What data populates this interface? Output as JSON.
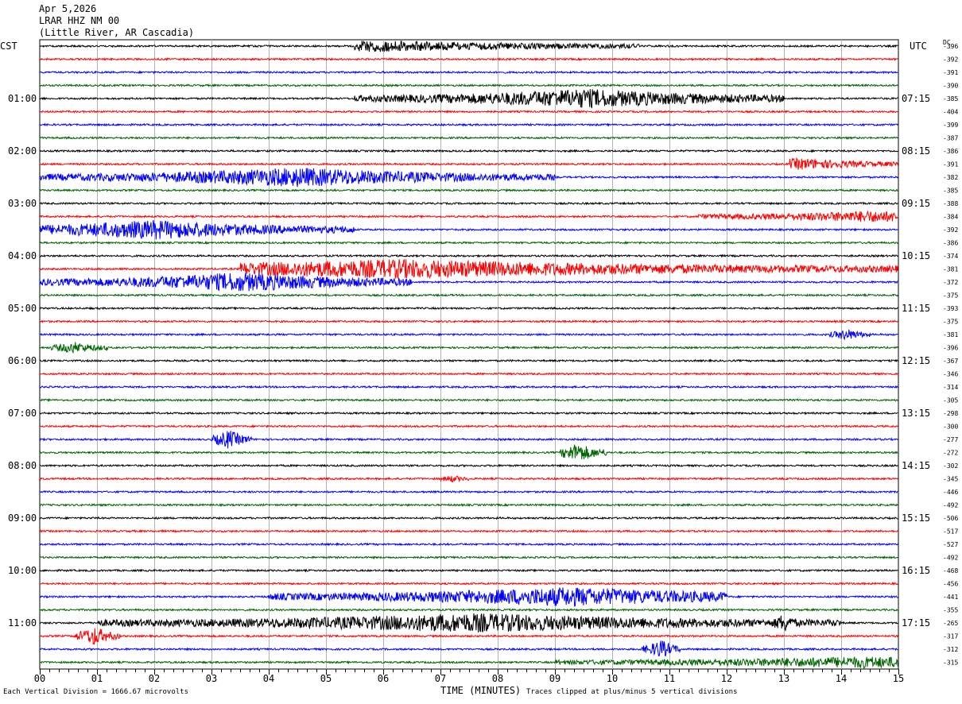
{
  "header": {
    "date": "Apr 5,2026",
    "station": "LRAR HHZ NM 00",
    "location": "(Little River, AR Cascadia)"
  },
  "left_zone": "CST",
  "right_zone": "UTC",
  "dc_label": "DC",
  "footer": {
    "scale_note": "Each Vertical Division = 1666.67 microvolts",
    "xlabel": "TIME (MINUTES)",
    "clip_note": "Traces clipped at plus/minus 5 vertical divisions"
  },
  "colors": {
    "trace_cycle": [
      "#000000",
      "#ff0000",
      "#0000ff",
      "#006400"
    ],
    "grid": "#b4b4b4"
  },
  "chart_data": {
    "type": "line",
    "title": "LRAR HHZ NM 00",
    "xlabel": "TIME (MINUTES)",
    "xlim": [
      0,
      15
    ],
    "x_ticks": [
      "00",
      "01",
      "02",
      "03",
      "04",
      "05",
      "06",
      "07",
      "08",
      "09",
      "10",
      "11",
      "12",
      "13",
      "14",
      "15"
    ],
    "minutes_per_line": 15,
    "left_hour_labels": [
      "01:00",
      "02:00",
      "03:00",
      "04:00",
      "05:00",
      "06:00",
      "07:00",
      "08:00",
      "09:00",
      "10:00",
      "11:00"
    ],
    "right_hour_labels": [
      "07:15",
      "08:15",
      "09:15",
      "10:15",
      "11:15",
      "12:15",
      "13:15",
      "14:15",
      "15:15",
      "16:15",
      "17:15"
    ],
    "dc_offsets": [
      "-396",
      "-392",
      "-391",
      "-390",
      "-385",
      "-404",
      "-399",
      "-387",
      "-386",
      "-391",
      "-382",
      "-385",
      "-388",
      "-384",
      "-392",
      "-386",
      "-374",
      "-381",
      "-372",
      "-375",
      "-393",
      "-375",
      "-381",
      "-396",
      "-367",
      "-346",
      "-314",
      "-305",
      "-298",
      "-300",
      "-277",
      "-272",
      "-302",
      "-345",
      "-446",
      "-492",
      "-506",
      "-517",
      "-527",
      "-492",
      "-468",
      "-456",
      "-441",
      "-355",
      "-265",
      "-317",
      "-312",
      "-315"
    ],
    "trace_count": 48,
    "activity_bursts": [
      {
        "trace": 0,
        "start_min": 5.5,
        "end_min": 10.5,
        "peak_min": 5.8,
        "level": "moderate"
      },
      {
        "trace": 4,
        "start_min": 5.5,
        "end_min": 13,
        "peak_min": 9.5,
        "level": "strong"
      },
      {
        "trace": 9,
        "start_min": 13.1,
        "end_min": 15,
        "peak_min": 13.3,
        "level": "moderate"
      },
      {
        "trace": 10,
        "start_min": 0,
        "end_min": 9,
        "peak_min": 4.5,
        "level": "strong"
      },
      {
        "trace": 13,
        "start_min": 11.5,
        "end_min": 15,
        "peak_min": 14.5,
        "level": "moderate"
      },
      {
        "trace": 14,
        "start_min": 0,
        "end_min": 5.5,
        "peak_min": 2,
        "level": "strong"
      },
      {
        "trace": 17,
        "start_min": 3.5,
        "end_min": 15,
        "peak_min": 6.3,
        "level": "strong"
      },
      {
        "trace": 18,
        "start_min": 0,
        "end_min": 6.5,
        "peak_min": 3.5,
        "level": "strong"
      },
      {
        "trace": 22,
        "start_min": 13.8,
        "end_min": 14.5,
        "peak_min": 14.1,
        "level": "moderate"
      },
      {
        "trace": 23,
        "start_min": 0.2,
        "end_min": 1.2,
        "peak_min": 0.6,
        "level": "moderate"
      },
      {
        "trace": 30,
        "start_min": 3.0,
        "end_min": 3.7,
        "peak_min": 3.3,
        "level": "strong"
      },
      {
        "trace": 31,
        "start_min": 9.1,
        "end_min": 9.9,
        "peak_min": 9.4,
        "level": "strong"
      },
      {
        "trace": 33,
        "start_min": 7.0,
        "end_min": 7.5,
        "peak_min": 7.2,
        "level": "weak"
      },
      {
        "trace": 42,
        "start_min": 4.0,
        "end_min": 12,
        "peak_min": 9.2,
        "level": "strong"
      },
      {
        "trace": 44,
        "start_min": 1.0,
        "end_min": 14,
        "peak_min": 7.6,
        "level": "strong"
      },
      {
        "trace": 44,
        "start_min": 12.8,
        "end_min": 13.3,
        "peak_min": 13.0,
        "level": "strong"
      },
      {
        "trace": 45,
        "start_min": 0.6,
        "end_min": 1.4,
        "peak_min": 0.95,
        "level": "strong"
      },
      {
        "trace": 46,
        "start_min": 10.5,
        "end_min": 11.2,
        "peak_min": 10.85,
        "level": "strong"
      },
      {
        "trace": 47,
        "start_min": 9.0,
        "end_min": 15,
        "peak_min": 14.4,
        "level": "moderate"
      }
    ]
  }
}
